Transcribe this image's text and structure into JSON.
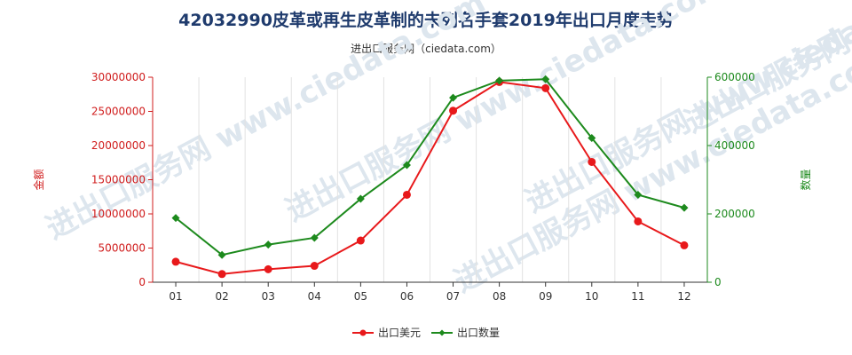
{
  "title": "42032990皮革或再生皮革制的未列名手套2019年出口月度走势",
  "subtitle": "进出口服务网（ciedata.com）",
  "watermark": "进出口服务网 www.ciedata.com",
  "chart_data": {
    "type": "line",
    "categories": [
      "01",
      "02",
      "03",
      "04",
      "05",
      "06",
      "07",
      "08",
      "09",
      "10",
      "11",
      "12"
    ],
    "series": [
      {
        "name": "出口美元",
        "axis": "left",
        "color": "#e8191b",
        "values": [
          3000000,
          1200000,
          1900000,
          2400000,
          6100000,
          12800000,
          25100000,
          29300000,
          28400000,
          17600000,
          8900000,
          5400000
        ]
      },
      {
        "name": "出口数量",
        "axis": "right",
        "color": "#1d8a1d",
        "values": [
          188000,
          80000,
          110000,
          130000,
          244000,
          343000,
          540000,
          590000,
          594000,
          422000,
          256000,
          218000
        ]
      }
    ],
    "y_left": {
      "label": "金额",
      "color": "#d01c1c",
      "min": 0,
      "max": 30000000,
      "ticks": [
        0,
        5000000,
        10000000,
        15000000,
        20000000,
        25000000,
        30000000
      ],
      "tick_labels": [
        "0",
        "5000000",
        "10000000",
        "15000000",
        "20000000",
        "25000000",
        "30000000"
      ]
    },
    "y_right": {
      "label": "数量",
      "color": "#1d8a1d",
      "min": 0,
      "max": 600000,
      "ticks": [
        0,
        200000,
        400000,
        600000
      ],
      "tick_labels": [
        "0",
        "200000",
        "400000",
        "600000"
      ]
    },
    "grid": "vertical",
    "legend_position": "bottom-center"
  }
}
